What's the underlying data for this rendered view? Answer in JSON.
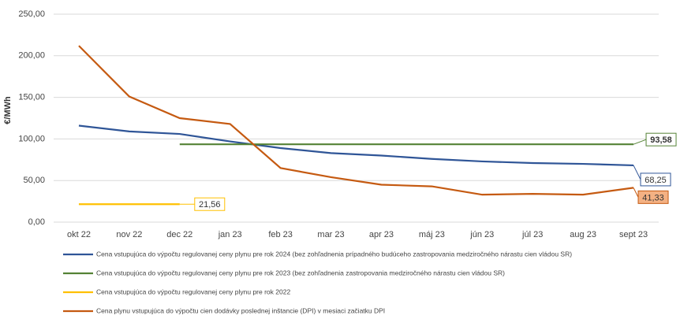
{
  "chart_data": {
    "type": "line",
    "y_label": "€/MWh",
    "categories": [
      "okt 22",
      "nov 22",
      "dec 22",
      "jan 23",
      "feb 23",
      "mar 23",
      "apr 23",
      "máj 23",
      "jún 23",
      "júl 23",
      "aug 23",
      "sept 23"
    ],
    "ylim": [
      0,
      250
    ],
    "yticks": [
      {
        "value": 0,
        "label": "0,00"
      },
      {
        "value": 50,
        "label": "50,00"
      },
      {
        "value": 100,
        "label": "100,00"
      },
      {
        "value": 150,
        "label": "150,00"
      },
      {
        "value": 200,
        "label": "200,00"
      },
      {
        "value": 250,
        "label": "250,00"
      }
    ],
    "grid": true,
    "series": [
      {
        "name": "Cena vstupujúca do výpočtu regulovanej ceny plynu pre rok 2024 (bez zohľadnenia prípadného budúceho zastropovania medziročného nárastu cien vládou SR)",
        "color": "#2f5597",
        "values": [
          116,
          109,
          106,
          97,
          89,
          83,
          80,
          76,
          73,
          71,
          70,
          68.25
        ],
        "value_labels": [
          null,
          null,
          null,
          null,
          null,
          null,
          null,
          null,
          null,
          null,
          null,
          "68,25"
        ]
      },
      {
        "name": "Cena vstupujúca do výpočtu regulovanej ceny plynu pre rok 2023 (bez zohľadnenia zastropovania medziročného nárastu cien vládou SR)",
        "color": "#548235",
        "values": [
          null,
          null,
          93.58,
          93.58,
          93.58,
          93.58,
          93.58,
          93.58,
          93.58,
          93.58,
          93.58,
          93.58
        ],
        "value_labels": [
          null,
          null,
          null,
          null,
          null,
          null,
          null,
          null,
          null,
          null,
          null,
          "93,58"
        ]
      },
      {
        "name": "Cena vstupujúca do výpočtu regulovanej ceny plynu pre rok 2022",
        "color": "#ffc000",
        "values": [
          21.56,
          21.56,
          21.56,
          null,
          null,
          null,
          null,
          null,
          null,
          null,
          null,
          null
        ],
        "value_labels": [
          null,
          null,
          "21,56",
          null,
          null,
          null,
          null,
          null,
          null,
          null,
          null,
          null
        ]
      },
      {
        "name": "Cena plynu vstupujúca do výpočtu cien dodávky poslednej inštancie (DPI) v mesiaci začiatku DPI",
        "color": "#c55a11",
        "values": [
          212,
          151,
          125,
          118,
          65,
          54,
          45,
          43,
          33,
          34,
          33,
          41.33
        ],
        "value_labels": [
          null,
          null,
          null,
          null,
          null,
          null,
          null,
          null,
          null,
          null,
          null,
          "41,33"
        ]
      }
    ]
  }
}
